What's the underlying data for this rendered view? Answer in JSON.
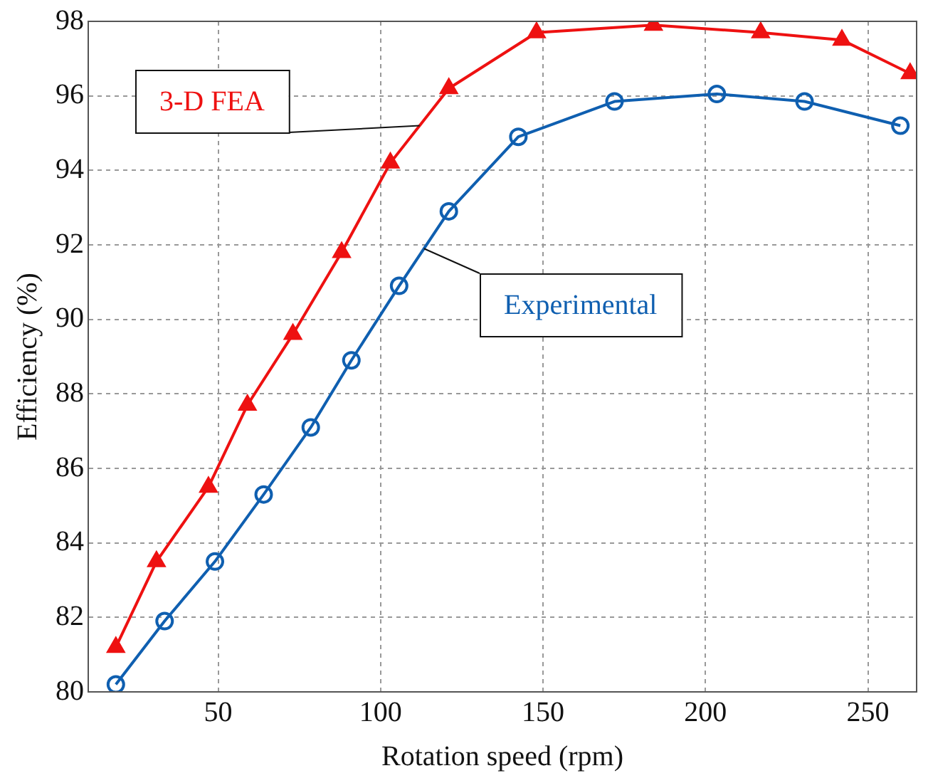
{
  "chart_data": {
    "type": "line",
    "xlabel": "Rotation speed (rpm)",
    "ylabel": "Efficiency (%)",
    "xlim": [
      10,
      265
    ],
    "xticks": [
      50,
      100,
      150,
      200,
      250
    ],
    "ylim": [
      80,
      98
    ],
    "yticks": [
      80,
      82,
      84,
      86,
      88,
      90,
      92,
      94,
      96,
      98
    ],
    "grid": true,
    "legend": false,
    "series": [
      {
        "name": "3-D FEA",
        "color": "#ee1111",
        "marker": "triangle",
        "x": [
          18.5,
          31,
          47,
          59,
          73,
          88,
          103,
          121,
          148,
          184,
          217,
          242,
          263
        ],
        "values": [
          81.2,
          83.5,
          85.5,
          87.7,
          89.6,
          91.8,
          94.2,
          96.2,
          97.7,
          97.9,
          97.7,
          97.5,
          96.6
        ]
      },
      {
        "name": "Experimental",
        "color": "#0f5fb0",
        "marker": "circle",
        "x": [
          18.5,
          33.5,
          49,
          64,
          78.5,
          91,
          105.7,
          121,
          142.4,
          172,
          203.5,
          230.5,
          260
        ],
        "values": [
          80.2,
          81.9,
          83.5,
          85.3,
          87.1,
          88.9,
          90.9,
          92.9,
          94.9,
          95.85,
          96.05,
          95.85,
          95.2
        ]
      }
    ]
  }
}
